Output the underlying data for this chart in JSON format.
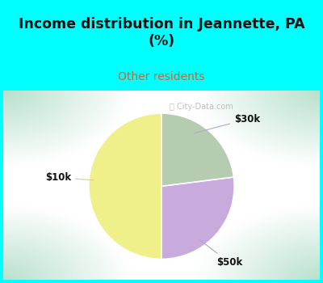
{
  "title": "Income distribution in Jeannette, PA\n(%)",
  "subtitle": "Other residents",
  "title_color": "#111111",
  "subtitle_color": "#cc6633",
  "background_cyan": "#00ffff",
  "slices": [
    {
      "label": "$10k",
      "value": 50,
      "color": "#f0f08a"
    },
    {
      "label": "$30k",
      "value": 27,
      "color": "#c9aadd"
    },
    {
      "label": "$50k",
      "value": 23,
      "color": "#b5ccb0"
    }
  ],
  "startangle": 90,
  "chart_bg_colors": [
    "#b8e0cc",
    "#cceedd",
    "#e8f8f0",
    "#f5fff8",
    "#ffffff"
  ],
  "watermark": "City-Data.com",
  "watermark_color": "#aaaaaa"
}
